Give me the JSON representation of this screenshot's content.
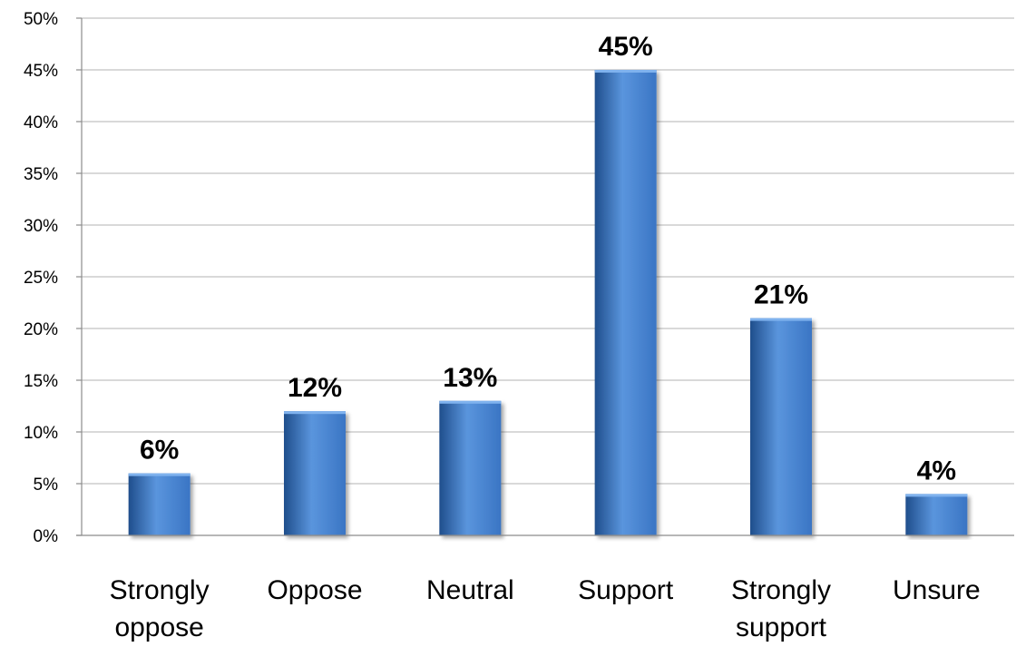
{
  "chart_data": {
    "type": "bar",
    "title": "",
    "xlabel": "",
    "ylabel": "",
    "categories": [
      [
        "Strongly",
        "oppose"
      ],
      [
        "Oppose"
      ],
      [
        "Neutral"
      ],
      [
        "Support"
      ],
      [
        "Strongly",
        "support"
      ],
      [
        "Unsure"
      ]
    ],
    "values": [
      6,
      12,
      13,
      45,
      21,
      4
    ],
    "data_labels": [
      "6%",
      "12%",
      "13%",
      "45%",
      "21%",
      "4%"
    ],
    "ylim": [
      0,
      50
    ],
    "y_ticks": [
      0,
      5,
      10,
      15,
      20,
      25,
      30,
      35,
      40,
      45,
      50
    ],
    "y_tick_labels": [
      "0%",
      "5%",
      "10%",
      "15%",
      "20%",
      "25%",
      "30%",
      "35%",
      "40%",
      "45%",
      "50%"
    ],
    "grid": true,
    "legend": "none",
    "bar_color": "#3a75c4",
    "bar_color_dark": "#1f4e8c",
    "bar_color_light": "#5a95dd"
  }
}
